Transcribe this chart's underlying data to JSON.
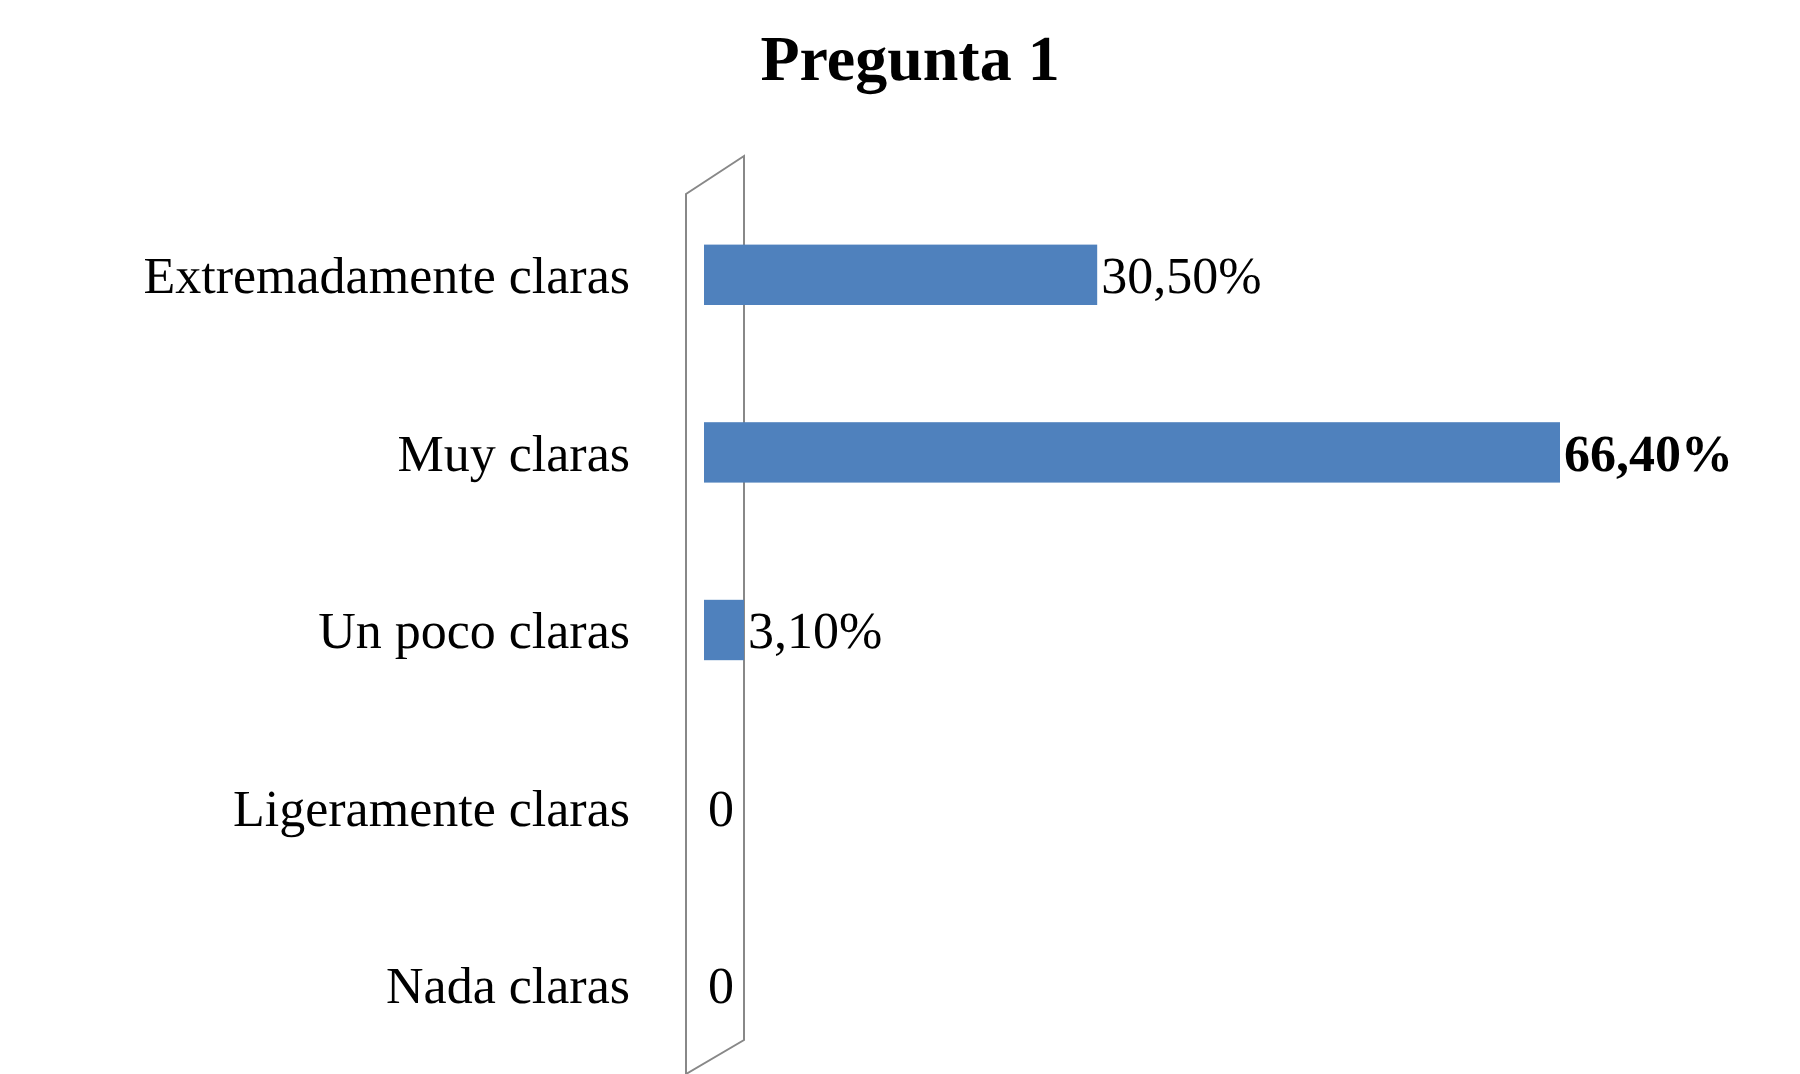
{
  "chart_data": {
    "type": "bar",
    "orientation": "horizontal",
    "title": "Pregunta 1",
    "categories": [
      "Extremadamente claras",
      "Muy claras",
      "Un poco claras",
      "Ligeramente claras",
      "Nada claras"
    ],
    "values": [
      30.5,
      66.4,
      3.1,
      0,
      0
    ],
    "value_labels": [
      "30,50%",
      "66,40%",
      "3,10%",
      "0",
      "0"
    ],
    "color": "#4f81bd"
  }
}
